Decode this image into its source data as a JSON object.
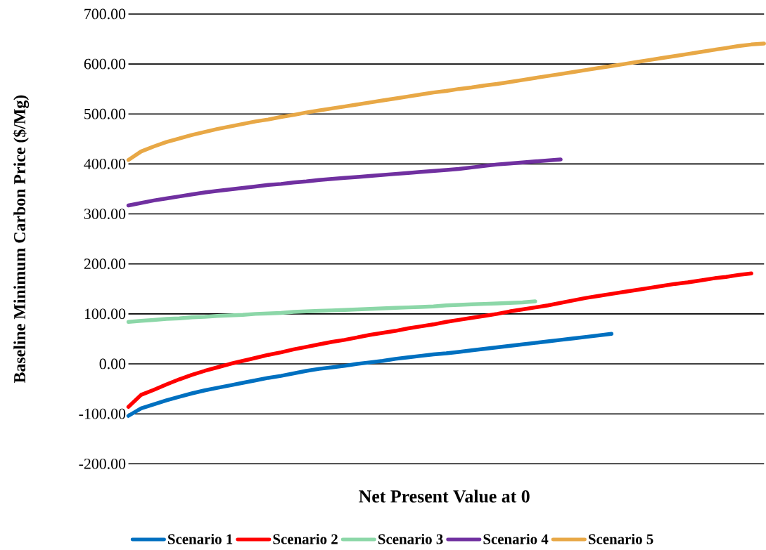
{
  "chart_data": {
    "type": "line",
    "xlabel": "Net Present Value at 0",
    "ylabel": "Baseline Minimum Carbon Price ($/Mg)",
    "categories": [
      null,
      null,
      null,
      null,
      null,
      null,
      null,
      null,
      null,
      null,
      null,
      null,
      null,
      null,
      null,
      null,
      null,
      null,
      null,
      null,
      null,
      null,
      null,
      null,
      null,
      null,
      null,
      null,
      null,
      null,
      null,
      null,
      null,
      null,
      null,
      null,
      null,
      null,
      null,
      null,
      null,
      null,
      null,
      null,
      null,
      null,
      null,
      null,
      null,
      null,
      null
    ],
    "ylim": [
      -200,
      700
    ],
    "yticks": [
      {
        "value": -200,
        "label": "-200.00"
      },
      {
        "value": -100,
        "label": "-100.00"
      },
      {
        "value": 0,
        "label": "0.00"
      },
      {
        "value": 100,
        "label": "100.00"
      },
      {
        "value": 200,
        "label": "200.00"
      },
      {
        "value": 300,
        "label": "300.00"
      },
      {
        "value": 400,
        "label": "400.00"
      },
      {
        "value": 500,
        "label": "500.00"
      },
      {
        "value": 600,
        "label": "600.00"
      },
      {
        "value": 700,
        "label": "700.00"
      }
    ],
    "grid": "y",
    "legend": "bottom",
    "series": [
      {
        "name": "Scenario 1",
        "color": "#0070c0",
        "values": [
          -104,
          -89,
          -81,
          -73,
          -66,
          -59,
          -53,
          -48,
          -43,
          -38,
          -33,
          -28,
          -24,
          -19,
          -14,
          -10,
          -7,
          -4,
          0,
          3,
          6,
          10,
          13,
          16,
          19,
          21,
          24,
          27,
          30,
          33,
          36,
          39,
          42,
          45,
          48,
          51,
          54,
          57,
          60,
          null,
          null,
          null,
          null,
          null,
          null,
          null,
          null,
          null,
          null,
          null,
          null
        ]
      },
      {
        "name": "Scenario 2",
        "color": "#ff0000",
        "values": [
          -86,
          -62,
          -52,
          -41,
          -31,
          -22,
          -14,
          -7,
          0,
          6,
          12,
          18,
          23,
          29,
          34,
          39,
          44,
          48,
          53,
          58,
          62,
          66,
          71,
          75,
          79,
          84,
          88,
          92,
          96,
          100,
          105,
          109,
          113,
          117,
          122,
          127,
          132,
          136,
          140,
          144,
          148,
          152,
          156,
          160,
          163,
          167,
          171,
          174,
          178,
          181,
          null
        ]
      },
      {
        "name": "Scenario 3",
        "color": "#8cd7a8",
        "values": [
          84,
          86,
          88,
          90,
          91,
          93,
          94,
          96,
          97,
          98,
          100,
          101,
          102,
          104,
          105,
          106,
          107,
          108,
          109,
          110,
          111,
          112,
          113,
          114,
          115,
          117,
          118,
          119,
          120,
          121,
          122,
          123,
          125,
          null,
          null,
          null,
          null,
          null,
          null,
          null,
          null,
          null,
          null,
          null,
          null,
          null,
          null,
          null,
          null,
          null,
          null
        ]
      },
      {
        "name": "Scenario 4",
        "color": "#7030a0",
        "values": [
          317,
          322,
          327,
          331,
          335,
          339,
          343,
          346,
          349,
          352,
          355,
          358,
          360,
          363,
          365,
          368,
          370,
          372,
          374,
          376,
          378,
          380,
          382,
          384,
          386,
          388,
          390,
          393,
          396,
          399,
          401,
          403,
          405,
          407,
          409,
          null,
          null,
          null,
          null,
          null,
          null,
          null,
          null,
          null,
          null,
          null,
          null,
          null,
          null,
          null,
          null
        ]
      },
      {
        "name": "Scenario 5",
        "color": "#e8a846",
        "values": [
          408,
          425,
          435,
          444,
          451,
          458,
          464,
          470,
          475,
          480,
          485,
          489,
          494,
          498,
          503,
          507,
          511,
          515,
          519,
          523,
          527,
          531,
          535,
          539,
          543,
          546,
          550,
          553,
          557,
          560,
          564,
          568,
          572,
          576,
          580,
          584,
          588,
          592,
          596,
          600,
          604,
          608,
          612,
          616,
          620,
          624,
          628,
          632,
          636,
          639,
          641
        ]
      }
    ]
  }
}
